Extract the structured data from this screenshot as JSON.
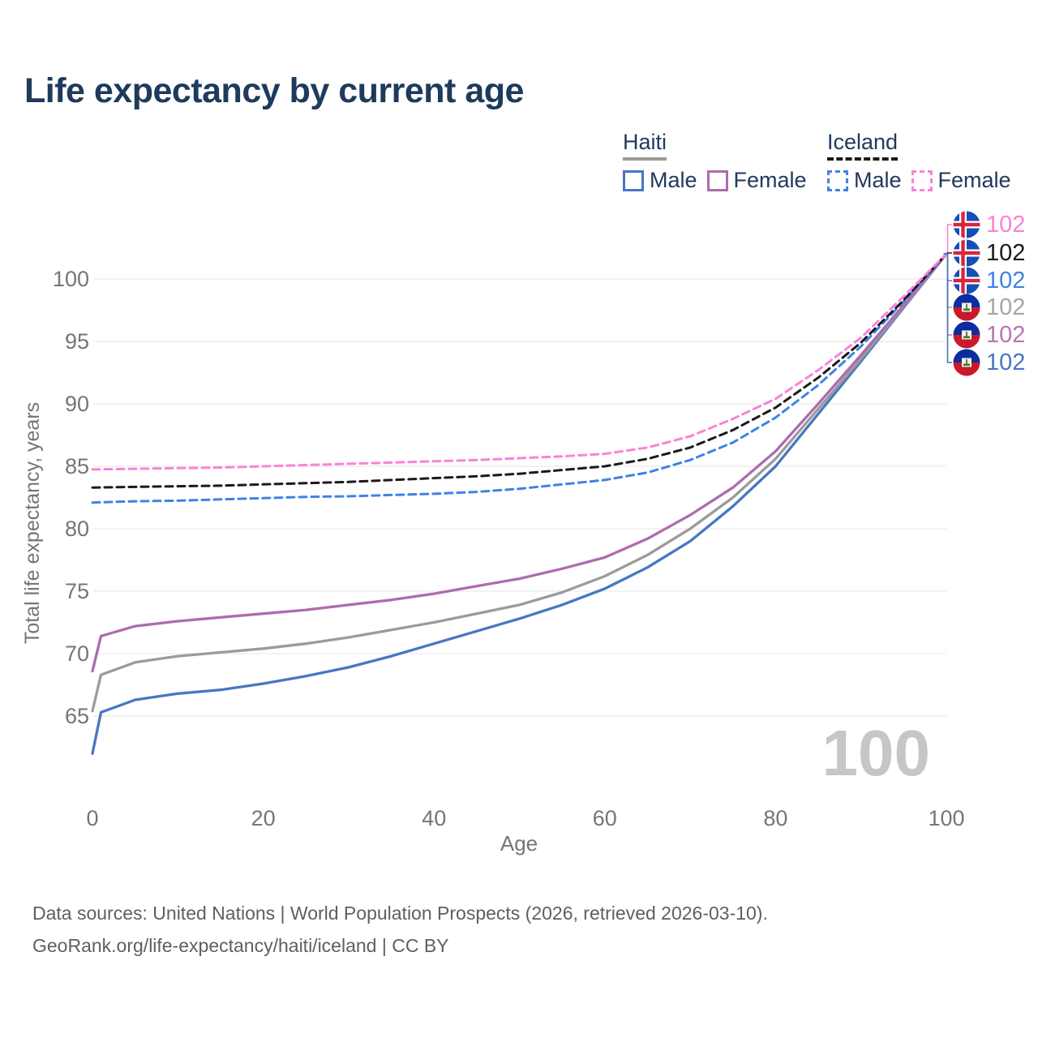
{
  "header": {
    "title": "Life expectancy by current age"
  },
  "legend": {
    "groups": [
      {
        "label": "Haiti",
        "line_style": "solid",
        "underline_color": "#9a9a9a",
        "items": [
          {
            "label": "Male",
            "color": "#4677c2"
          },
          {
            "label": "Female",
            "color": "#af6bae"
          }
        ]
      },
      {
        "label": "Iceland",
        "line_style": "dashed",
        "underline_color": "#1a1a1a",
        "items": [
          {
            "label": "Male",
            "color": "#3f82e6"
          },
          {
            "label": "Female",
            "color": "#fa82d8"
          }
        ]
      }
    ]
  },
  "chart_data": {
    "type": "line",
    "title": "Life expectancy by current age",
    "xlabel": "Age",
    "ylabel": "Total life expectancy, years",
    "xlim": [
      0,
      100
    ],
    "ylim": [
      61.5,
      103
    ],
    "x_ticks": [
      0,
      20,
      40,
      60,
      80,
      100
    ],
    "y_ticks": [
      65,
      70,
      75,
      80,
      85,
      90,
      95,
      100
    ],
    "grid": "horizontal-only",
    "legend_position": "top-right",
    "series": [
      {
        "name": "Haiti Male",
        "country": "Haiti",
        "sex": "Male",
        "color": "#4677c2",
        "dash": "solid",
        "end_value": 102,
        "x": [
          0,
          1,
          5,
          10,
          15,
          20,
          25,
          30,
          35,
          40,
          45,
          50,
          55,
          60,
          65,
          70,
          75,
          80,
          85,
          90,
          95,
          100
        ],
        "y": [
          62.0,
          65.3,
          66.3,
          66.8,
          67.1,
          67.6,
          68.2,
          68.9,
          69.8,
          70.8,
          71.8,
          72.8,
          73.9,
          75.2,
          76.9,
          79.0,
          81.8,
          85.0,
          89.2,
          93.4,
          97.7,
          102
        ]
      },
      {
        "name": "Haiti Both sexes",
        "country": "Haiti",
        "sex": "Both",
        "color": "#9b9b9b",
        "dash": "solid",
        "end_value": 102,
        "x": [
          0,
          1,
          5,
          10,
          15,
          20,
          25,
          30,
          35,
          40,
          45,
          50,
          55,
          60,
          65,
          70,
          75,
          80,
          85,
          90,
          95,
          100
        ],
        "y": [
          65.4,
          68.3,
          69.3,
          69.8,
          70.1,
          70.4,
          70.8,
          71.3,
          71.9,
          72.5,
          73.2,
          73.9,
          74.9,
          76.2,
          77.9,
          80.0,
          82.5,
          85.6,
          89.6,
          93.6,
          97.8,
          102
        ]
      },
      {
        "name": "Haiti Female",
        "country": "Haiti",
        "sex": "Female",
        "color": "#af6bae",
        "dash": "solid",
        "end_value": 102,
        "x": [
          0,
          1,
          5,
          10,
          15,
          20,
          25,
          30,
          35,
          40,
          45,
          50,
          55,
          60,
          65,
          70,
          75,
          80,
          85,
          90,
          95,
          100
        ],
        "y": [
          68.6,
          71.4,
          72.2,
          72.6,
          72.9,
          73.2,
          73.5,
          73.9,
          74.3,
          74.8,
          75.4,
          76.0,
          76.8,
          77.7,
          79.2,
          81.1,
          83.3,
          86.2,
          90.0,
          93.9,
          97.9,
          102
        ]
      },
      {
        "name": "Iceland Male",
        "country": "Iceland",
        "sex": "Male",
        "color": "#3f82e6",
        "dash": "dashed",
        "end_value": 102,
        "x": [
          0,
          5,
          10,
          15,
          20,
          25,
          30,
          35,
          40,
          45,
          50,
          55,
          60,
          65,
          70,
          75,
          80,
          85,
          90,
          95,
          100
        ],
        "y": [
          82.1,
          82.2,
          82.25,
          82.35,
          82.45,
          82.55,
          82.6,
          82.7,
          82.8,
          82.95,
          83.2,
          83.55,
          83.9,
          84.5,
          85.5,
          86.9,
          88.9,
          91.5,
          94.6,
          98.2,
          102
        ]
      },
      {
        "name": "Iceland Both sexes",
        "country": "Iceland",
        "sex": "Both",
        "color": "#1a1a1a",
        "dash": "dashed",
        "end_value": 102,
        "x": [
          0,
          5,
          10,
          15,
          20,
          25,
          30,
          35,
          40,
          45,
          50,
          55,
          60,
          65,
          70,
          75,
          80,
          85,
          90,
          95,
          100
        ],
        "y": [
          83.3,
          83.35,
          83.4,
          83.45,
          83.55,
          83.65,
          83.75,
          83.9,
          84.05,
          84.2,
          84.4,
          84.7,
          85.0,
          85.6,
          86.5,
          87.9,
          89.7,
          92.1,
          94.9,
          98.3,
          102
        ]
      },
      {
        "name": "Iceland Female",
        "country": "Iceland",
        "sex": "Female",
        "color": "#fa82d8",
        "dash": "dashed",
        "end_value": 102,
        "x": [
          0,
          5,
          10,
          15,
          20,
          25,
          30,
          35,
          40,
          45,
          50,
          55,
          60,
          65,
          70,
          75,
          80,
          85,
          90,
          95,
          100
        ],
        "y": [
          84.75,
          84.8,
          84.85,
          84.9,
          85.0,
          85.1,
          85.2,
          85.3,
          85.4,
          85.5,
          85.65,
          85.8,
          86.0,
          86.5,
          87.4,
          88.8,
          90.4,
          92.7,
          95.3,
          98.6,
          102
        ]
      }
    ],
    "end_labels": [
      {
        "series": "Iceland Female",
        "flag": "iceland",
        "value": "102",
        "color": "#fa82d8"
      },
      {
        "series": "Iceland Both sexes",
        "flag": "iceland",
        "value": "102",
        "color": "#1a1a1a"
      },
      {
        "series": "Iceland Male",
        "flag": "iceland",
        "value": "102",
        "color": "#3f82e6"
      },
      {
        "series": "Haiti Both sexes",
        "flag": "haiti",
        "value": "102",
        "color": "#a6a6a6"
      },
      {
        "series": "Haiti Female",
        "flag": "haiti",
        "value": "102",
        "color": "#b477b4"
      },
      {
        "series": "Haiti Male",
        "flag": "haiti",
        "value": "102",
        "color": "#4677c2"
      }
    ]
  },
  "hover_age": {
    "value": "100"
  },
  "footer": {
    "line1": "Data sources: United Nations | World Population Prospects (2026, retrieved 2026-03-10).",
    "line2": "GeoRank.org/life-expectancy/haiti/iceland | CC BY"
  }
}
